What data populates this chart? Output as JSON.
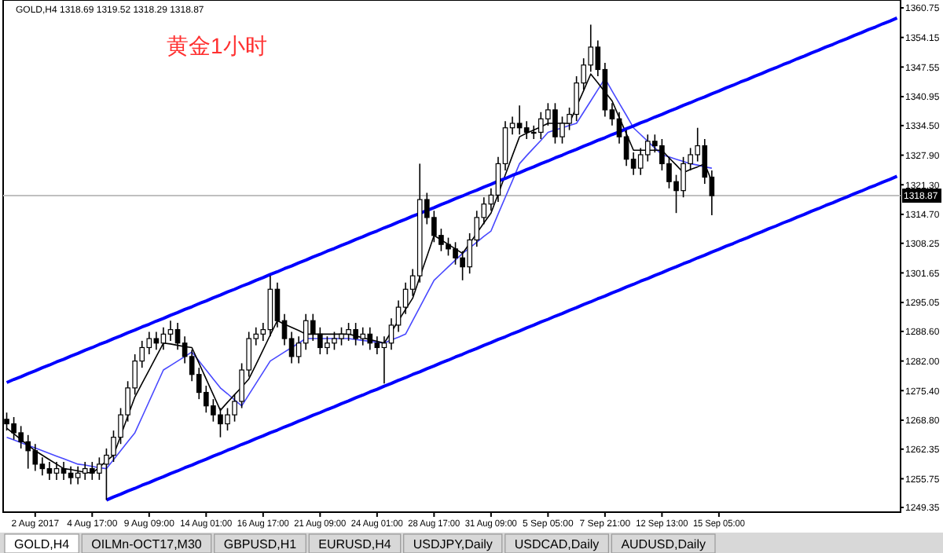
{
  "chart_data": {
    "type": "candlestick",
    "title": "黄金1小时",
    "subtitle": "GOLD,H4  1318.69 1319.52 1318.29 1318.87",
    "annotations": [
      "GOLD,H4",
      "OILMn-OCT17,M30",
      "GBPUSD,H1",
      "EURUSD,H4",
      "USDJPY,Daily",
      "USDCAD,Daily",
      "AUDUSD,Daily"
    ],
    "categories": [
      null,
      null,
      null,
      null,
      "2 Aug 2017",
      null,
      null,
      null,
      null,
      null,
      null,
      null,
      "4 Aug 17:00",
      null,
      null,
      null,
      null,
      null,
      null,
      null,
      "9 Aug 09:00",
      null,
      null,
      null,
      null,
      null,
      null,
      null,
      "14 Aug 01:00",
      null,
      null,
      null,
      null,
      null,
      null,
      null,
      "16 Aug 17:00",
      null,
      null,
      null,
      null,
      null,
      null,
      null,
      "21 Aug 09:00",
      null,
      null,
      null,
      null,
      null,
      null,
      null,
      "24 Aug 01:00",
      null,
      null,
      null,
      null,
      null,
      null,
      null,
      "28 Aug 17:00",
      null,
      null,
      null,
      null,
      null,
      null,
      null,
      "31 Aug 09:00",
      null,
      null,
      null,
      null,
      null,
      null,
      null,
      "5 Sep 05:00",
      null,
      null,
      null,
      null,
      null,
      null,
      null,
      "7 Sep 21:00",
      null,
      null,
      null,
      null,
      null,
      null,
      null,
      "12 Sep 13:00",
      null,
      null,
      null,
      null,
      null,
      null,
      null,
      "15 Sep 05:00",
      null,
      null,
      null,
      null,
      null,
      null,
      null,
      null,
      null,
      null,
      null,
      null,
      null,
      null,
      null,
      null,
      null,
      null,
      null,
      null,
      null,
      null,
      null,
      null,
      null
    ],
    "ohlc": [
      [
        1269,
        1270.5,
        1266.5,
        1268
      ],
      [
        1268,
        1269.5,
        1264.5,
        1266
      ],
      [
        1266,
        1267.5,
        1262.5,
        1264
      ],
      [
        1264,
        1265.5,
        1258,
        1262
      ],
      [
        1262,
        1263.5,
        1257.5,
        1259
      ],
      [
        1259,
        1260.5,
        1256.5,
        1258
      ],
      [
        1258,
        1259.5,
        1255.5,
        1257
      ],
      [
        1257,
        1259.5,
        1255.5,
        1258
      ],
      [
        1258,
        1259.5,
        1255.5,
        1257
      ],
      [
        1257,
        1258.5,
        1254.5,
        1256
      ],
      [
        1256,
        1258.5,
        1254.5,
        1257
      ],
      [
        1257,
        1259.5,
        1255.5,
        1258
      ],
      [
        1258,
        1259.5,
        1255.5,
        1257
      ],
      [
        1257,
        1260.5,
        1255.5,
        1259
      ],
      [
        1259,
        1262.5,
        1251,
        1261
      ],
      [
        1261,
        1266.5,
        1259.5,
        1265
      ],
      [
        1265,
        1271.5,
        1263.5,
        1270
      ],
      [
        1270,
        1277.5,
        1268.5,
        1276
      ],
      [
        1276,
        1283.5,
        1274.5,
        1282
      ],
      [
        1282,
        1286.5,
        1280.5,
        1285
      ],
      [
        1285,
        1288.5,
        1283.5,
        1287
      ],
      [
        1287,
        1288.5,
        1284.5,
        1286
      ],
      [
        1286,
        1289.5,
        1284.5,
        1288
      ],
      [
        1288,
        1291,
        1286.5,
        1289
      ],
      [
        1289,
        1290.5,
        1284.5,
        1286
      ],
      [
        1286,
        1287.5,
        1281.5,
        1283
      ],
      [
        1283,
        1284.5,
        1277.5,
        1279
      ],
      [
        1279,
        1280.5,
        1273.5,
        1275
      ],
      [
        1275,
        1276.5,
        1270.5,
        1272
      ],
      [
        1272,
        1273.5,
        1268.5,
        1270
      ],
      [
        1270,
        1271.5,
        1265,
        1268
      ],
      [
        1268,
        1271.5,
        1266.5,
        1270
      ],
      [
        1270,
        1274.5,
        1268.5,
        1273
      ],
      [
        1273,
        1281.5,
        1271.5,
        1280
      ],
      [
        1280,
        1288.5,
        1278.5,
        1287
      ],
      [
        1287,
        1289.5,
        1285.5,
        1288
      ],
      [
        1288,
        1290.5,
        1286.5,
        1289
      ],
      [
        1289,
        1301,
        1287.5,
        1298
      ],
      [
        1298,
        1299.5,
        1289.5,
        1291
      ],
      [
        1291,
        1292.5,
        1285.5,
        1287
      ],
      [
        1287,
        1288.5,
        1281.5,
        1283
      ],
      [
        1283,
        1287.5,
        1281.5,
        1286
      ],
      [
        1286,
        1292.5,
        1284.5,
        1291
      ],
      [
        1291,
        1292.5,
        1286.5,
        1288
      ],
      [
        1288,
        1289.5,
        1283.5,
        1285
      ],
      [
        1285,
        1287.5,
        1283.5,
        1286
      ],
      [
        1286,
        1288.5,
        1284.5,
        1287
      ],
      [
        1287,
        1289.5,
        1285.5,
        1288
      ],
      [
        1288,
        1290.5,
        1286.5,
        1289
      ],
      [
        1289,
        1290.5,
        1285.5,
        1287
      ],
      [
        1287,
        1289.5,
        1285.5,
        1288
      ],
      [
        1288,
        1289.5,
        1284.5,
        1286
      ],
      [
        1286,
        1287.5,
        1283.5,
        1285
      ],
      [
        1285,
        1287.5,
        1277,
        1286
      ],
      [
        1286,
        1291.5,
        1284.5,
        1290
      ],
      [
        1290,
        1295.5,
        1288.5,
        1294
      ],
      [
        1294,
        1299.5,
        1292.5,
        1298
      ],
      [
        1298,
        1302.5,
        1296.5,
        1301
      ],
      [
        1301,
        1326,
        1299.5,
        1318
      ],
      [
        1318,
        1319.5,
        1312.5,
        1314
      ],
      [
        1314,
        1315.5,
        1308.5,
        1310
      ],
      [
        1310,
        1311.5,
        1306.5,
        1308
      ],
      [
        1308,
        1309.5,
        1305.5,
        1307
      ],
      [
        1307,
        1308.5,
        1303.5,
        1305
      ],
      [
        1305,
        1306.5,
        1300,
        1303
      ],
      [
        1303,
        1310.5,
        1301.5,
        1309
      ],
      [
        1309,
        1315.5,
        1307.5,
        1314
      ],
      [
        1314,
        1318.5,
        1312.5,
        1317
      ],
      [
        1317,
        1320.5,
        1315.5,
        1319
      ],
      [
        1319,
        1327.5,
        1317.5,
        1326
      ],
      [
        1326,
        1335.5,
        1324.5,
        1334
      ],
      [
        1334,
        1336.5,
        1332.5,
        1335
      ],
      [
        1335,
        1339,
        1332.5,
        1334
      ],
      [
        1334,
        1335.5,
        1331.5,
        1333
      ],
      [
        1333,
        1334.5,
        1331.5,
        1333
      ],
      [
        1333,
        1337.5,
        1331.5,
        1336
      ],
      [
        1336,
        1339.5,
        1334.5,
        1338
      ],
      [
        1338,
        1339.5,
        1330.5,
        1332
      ],
      [
        1332,
        1336.5,
        1330.5,
        1335
      ],
      [
        1335,
        1338.5,
        1333.5,
        1337
      ],
      [
        1337,
        1345.5,
        1335.5,
        1344
      ],
      [
        1344,
        1349.5,
        1342.5,
        1348
      ],
      [
        1348,
        1357,
        1346.5,
        1352
      ],
      [
        1352,
        1353.5,
        1345.5,
        1347
      ],
      [
        1347,
        1348.5,
        1336.5,
        1338
      ],
      [
        1338,
        1339.5,
        1334.5,
        1336
      ],
      [
        1336,
        1337.5,
        1330.5,
        1332
      ],
      [
        1332,
        1333.5,
        1325.5,
        1327
      ],
      [
        1327,
        1328.5,
        1323.5,
        1325
      ],
      [
        1325,
        1329.5,
        1323.5,
        1328
      ],
      [
        1328,
        1332.5,
        1326.5,
        1331
      ],
      [
        1331,
        1332.5,
        1328.5,
        1330
      ],
      [
        1330,
        1331.5,
        1324.5,
        1326
      ],
      [
        1326,
        1327.5,
        1320.5,
        1322
      ],
      [
        1322,
        1323.5,
        1315,
        1320
      ],
      [
        1320,
        1327.5,
        1318.5,
        1326
      ],
      [
        1326,
        1329.5,
        1324.5,
        1328
      ],
      [
        1328,
        1334,
        1326.5,
        1330
      ],
      [
        1330,
        1331.5,
        1321.5,
        1323
      ],
      [
        1323,
        1324.5,
        1314.5,
        1318.87
      ],
      null,
      null,
      null,
      null,
      null,
      null,
      null,
      null,
      null,
      null,
      null,
      null,
      null,
      null,
      null,
      null,
      null,
      null,
      null,
      null,
      null,
      null,
      null,
      null,
      null,
      null
    ],
    "series": [
      {
        "type": "line",
        "color": "#4848ff",
        "values": [
          1265,
          1264.4,
          1263.8,
          1263.2,
          1262.6,
          1262,
          1261.4,
          1260.8,
          1260.2,
          1259.6,
          1259,
          1258.8,
          1258.5,
          1258.2,
          1258,
          1260,
          1262,
          1264,
          1266,
          1269.5,
          1273,
          1276.5,
          1280,
          1281,
          1282,
          1283,
          1284,
          1282,
          1280,
          1278,
          1276,
          1274.7,
          1273.3,
          1272,
          1274.5,
          1277,
          1279.5,
          1282,
          1283,
          1284,
          1285,
          1286,
          1287,
          1287,
          1287,
          1287,
          1287,
          1287,
          1287,
          1286.8,
          1286.6,
          1286.4,
          1286.2,
          1286,
          1286.7,
          1287.3,
          1288,
          1291,
          1294,
          1297,
          1300,
          1301.5,
          1303,
          1304.5,
          1306,
          1307.2,
          1308.5,
          1309.8,
          1311,
          1314.8,
          1318.5,
          1322.2,
          1326,
          1327.8,
          1329.5,
          1331.2,
          1333,
          1333.5,
          1334,
          1334.5,
          1335,
          1337.5,
          1340,
          1342.5,
          1345,
          1342.2,
          1339.5,
          1336.8,
          1334,
          1332.5,
          1331,
          1329.5,
          1328,
          1327.5,
          1327,
          1326.5,
          1326,
          1325.7,
          1325.3,
          1325,
          null,
          null,
          null,
          null,
          null,
          null,
          null,
          null,
          null,
          null,
          null,
          null,
          null,
          null,
          null,
          null,
          null,
          null,
          null,
          null,
          null,
          null,
          null,
          null,
          null,
          null
        ]
      },
      {
        "type": "line",
        "color": "#000000",
        "values": [
          1267,
          1265.8,
          1264.5,
          1263.2,
          1262,
          1261,
          1260,
          1259,
          1258,
          1257.8,
          1257.5,
          1257.2,
          1257,
          1258.3,
          1259.7,
          1261,
          1265.3,
          1269.7,
          1274,
          1277,
          1280,
          1283,
          1286,
          1285.8,
          1285.5,
          1285.2,
          1285,
          1281.5,
          1278,
          1274.5,
          1271,
          1272.8,
          1274.5,
          1276.2,
          1278,
          1281.2,
          1284.5,
          1287.8,
          1291,
          1290.2,
          1289.5,
          1288.8,
          1288,
          1288,
          1288,
          1288,
          1288,
          1288,
          1288,
          1287.6,
          1287.2,
          1286.8,
          1286.4,
          1286,
          1288.5,
          1291,
          1293.5,
          1296,
          1300.7,
          1305.3,
          1310,
          1309,
          1308,
          1307,
          1306,
          1308.2,
          1310.5,
          1312.8,
          1315,
          1319.2,
          1323.5,
          1327.8,
          1332,
          1332.8,
          1333.5,
          1334.2,
          1335,
          1335,
          1335,
          1335,
          1338.7,
          1342.3,
          1346,
          1344,
          1342,
          1340,
          1336.3,
          1332.7,
          1329,
          1329,
          1329,
          1329,
          1329,
          1327.3,
          1325.7,
          1324,
          1324.7,
          1325.3,
          1326,
          1322,
          null,
          null,
          null,
          null,
          null,
          null,
          null,
          null,
          null,
          null,
          null,
          null,
          null,
          null,
          null,
          null,
          null,
          null,
          null,
          null,
          null,
          null,
          null,
          null,
          null,
          null
        ]
      },
      {
        "type": "line",
        "color": "#0000ff",
        "values": [
          1277.2,
          1277.9,
          1278.5,
          1279.2,
          1279.8,
          1280.5,
          1281.1,
          1281.8,
          1282.4,
          1283.1,
          1283.7,
          1284.4,
          1285.0,
          1285.7,
          1286.3,
          1287.0,
          1287.6,
          1288.3,
          1288.9,
          1289.6,
          1290.2,
          1290.9,
          1291.5,
          1292.2,
          1292.8,
          1293.5,
          1294.1,
          1294.8,
          1295.4,
          1296.1,
          1296.7,
          1297.4,
          1298.0,
          1298.7,
          1299.3,
          1300.0,
          1300.6,
          1301.3,
          1301.9,
          1302.6,
          1303.2,
          1303.9,
          1304.5,
          1305.2,
          1305.8,
          1306.5,
          1307.1,
          1307.8,
          1308.4,
          1309.1,
          1309.7,
          1310.4,
          1311.0,
          1311.7,
          1312.3,
          1313.0,
          1313.6,
          1314.3,
          1314.9,
          1315.6,
          1316.2,
          1316.9,
          1317.5,
          1318.2,
          1318.8,
          1319.5,
          1320.1,
          1320.8,
          1321.4,
          1322.1,
          1322.7,
          1323.4,
          1324.0,
          1324.7,
          1325.3,
          1326.0,
          1326.6,
          1327.3,
          1327.9,
          1328.6,
          1329.2,
          1329.9,
          1330.5,
          1331.2,
          1331.8,
          1332.5,
          1333.1,
          1333.8,
          1334.4,
          1335.1,
          1335.7,
          1336.4,
          1337.0,
          1337.7,
          1338.3,
          1339.0,
          1339.6,
          1340.3,
          1340.9,
          1341.6,
          1342.2,
          1342.9,
          1343.5,
          1344.2,
          1344.8,
          1345.5,
          1346.1,
          1346.8,
          1347.4,
          1348.1,
          1348.7,
          1349.4,
          1350.0,
          1350.7,
          1351.3,
          1352.0,
          1352.6,
          1353.3,
          1353.9,
          1354.6,
          1355.2,
          1355.9,
          1356.5,
          1357.2,
          1357.8,
          1358.5
        ]
      },
      {
        "type": "line",
        "color": "#0000ff",
        "values": [
          null,
          null,
          null,
          null,
          null,
          null,
          null,
          null,
          null,
          null,
          null,
          null,
          null,
          null,
          1251.0,
          1251.7,
          1252.3,
          1253.0,
          1253.6,
          1254.3,
          1254.9,
          1255.6,
          1256.2,
          1256.9,
          1257.5,
          1258.2,
          1258.8,
          1259.5,
          1260.1,
          1260.8,
          1261.4,
          1262.1,
          1262.7,
          1263.4,
          1264.0,
          1264.7,
          1265.3,
          1266.0,
          1266.6,
          1267.3,
          1267.9,
          1268.6,
          1269.2,
          1269.9,
          1270.5,
          1271.2,
          1271.8,
          1272.5,
          1273.1,
          1273.8,
          1274.4,
          1275.1,
          1275.7,
          1276.4,
          1277.0,
          1277.7,
          1278.3,
          1279.0,
          1279.6,
          1280.3,
          1280.9,
          1281.6,
          1282.2,
          1282.9,
          1283.5,
          1284.2,
          1284.8,
          1285.5,
          1286.1,
          1286.8,
          1287.4,
          1288.1,
          1288.7,
          1289.4,
          1290.0,
          1290.7,
          1291.3,
          1292.0,
          1292.6,
          1293.3,
          1293.9,
          1294.6,
          1295.2,
          1295.9,
          1296.5,
          1297.2,
          1297.8,
          1298.5,
          1299.1,
          1299.8,
          1300.4,
          1301.1,
          1301.7,
          1302.4,
          1303.0,
          1303.7,
          1304.3,
          1305.0,
          1305.6,
          1306.3,
          1306.9,
          1307.6,
          1308.2,
          1308.9,
          1309.5,
          1310.2,
          1310.8,
          1311.5,
          1312.1,
          1312.8,
          1313.4,
          1314.1,
          1314.7,
          1315.4,
          1316.0,
          1316.7,
          1317.3,
          1318.0,
          1318.6,
          1319.3,
          1319.9,
          1320.6,
          1321.2,
          1321.9,
          1322.5,
          1323.2
        ]
      }
    ],
    "ylim": [
      1248.3,
      1362.5
    ],
    "yticks": [
      1360.75,
      1354.15,
      1347.55,
      1340.95,
      {
        "value": 1334.5,
        "label": "1334.50"
      },
      {
        "value": 1327.9,
        "label": "1327.90"
      },
      {
        "value": 1321.3,
        "label": "1321.30"
      },
      {
        "value": 1314.7,
        "label": "1314.70"
      },
      1308.25,
      1301.65,
      1295.05,
      {
        "value": 1288.6,
        "label": "1288.60"
      },
      {
        "value": 1282,
        "label": "1282.00"
      },
      {
        "value": 1275.4,
        "label": "1275.40"
      },
      {
        "value": 1268.8,
        "label": "1268.80"
      },
      1262.35,
      1255.75,
      1249.35
    ],
    "ref_lines": [
      {
        "axis": "y",
        "value": 1318.87,
        "label": "1318.87",
        "color": "#c0c0c0"
      }
    ]
  }
}
